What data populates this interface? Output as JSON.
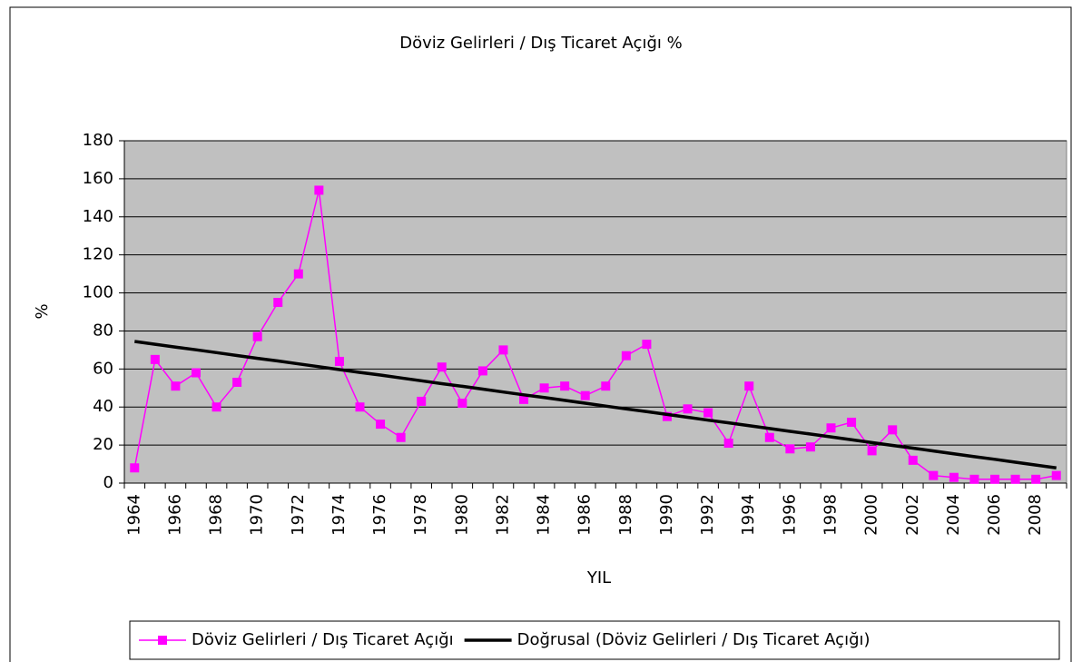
{
  "chart_data": {
    "type": "line",
    "title": "Döviz Gelirleri / Dış Ticaret Açığı %",
    "xlabel": "YIL",
    "ylabel": "%",
    "categories": [
      "1964",
      null,
      "1966",
      null,
      "1968",
      null,
      "1970",
      null,
      "1972",
      null,
      "1974",
      null,
      "1976",
      null,
      "1978",
      null,
      "1980",
      null,
      "1982",
      null,
      "1984",
      null,
      "1986",
      null,
      "1988",
      null,
      "1990",
      null,
      "1992",
      null,
      "1994",
      null,
      "1996",
      null,
      "1998",
      null,
      "2000",
      null,
      "2002",
      null,
      "2004",
      null,
      "2006",
      null,
      "2008",
      null
    ],
    "series": [
      {
        "name": "Döviz Gelirleri / Dış Ticaret Açığı",
        "color": "#ff00ff",
        "marker": "square",
        "values": [
          8,
          65,
          51,
          58,
          40,
          53,
          77,
          95,
          110,
          154,
          64,
          40,
          31,
          24,
          43,
          61,
          42,
          59,
          70,
          44,
          50,
          51,
          46,
          51,
          67,
          73,
          35,
          39,
          37,
          21,
          51,
          24,
          18,
          19,
          29,
          32,
          17,
          28,
          12,
          4,
          3,
          2,
          2,
          2,
          2,
          4
        ]
      },
      {
        "name": "Doğrusal (Döviz Gelirleri / Dış Ticaret Açığı)",
        "color": "#000000",
        "marker": "none",
        "values": [
          74.5,
          73.0,
          71.5,
          70.1,
          68.6,
          67.1,
          65.6,
          64.2,
          62.7,
          61.2,
          59.7,
          58.2,
          56.8,
          55.3,
          53.8,
          52.3,
          50.9,
          49.4,
          47.9,
          46.4,
          45.0,
          43.5,
          42.0,
          40.5,
          39.0,
          37.6,
          36.1,
          34.6,
          33.1,
          31.7,
          30.2,
          28.7,
          27.2,
          25.8,
          24.3,
          22.8,
          21.3,
          19.8,
          18.4,
          16.9,
          15.4,
          13.9,
          12.5,
          11.0,
          9.5,
          8.0
        ]
      }
    ],
    "ylim": [
      0,
      180
    ],
    "yticks": [
      0,
      20,
      40,
      60,
      80,
      100,
      120,
      140,
      160,
      180
    ],
    "grid": true,
    "legend": "bottom",
    "plot_background": "#c0c0c0"
  }
}
